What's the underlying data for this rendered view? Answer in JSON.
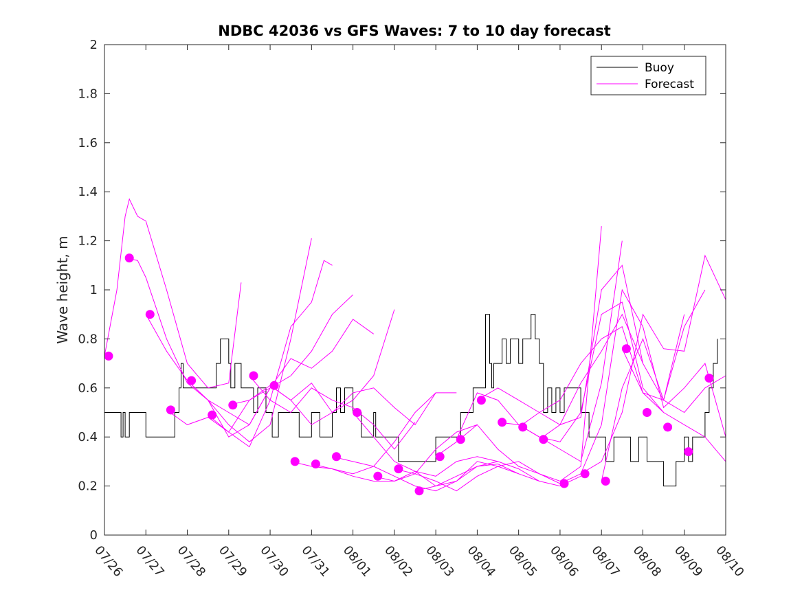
{
  "colors": {
    "buoy": "#000000",
    "forecast": "#ff00ff",
    "axis": "#262626"
  },
  "chart_data": {
    "type": "line",
    "title": "NDBC 42036 vs GFS Waves: 7 to 10 day forecast",
    "xlabel": "",
    "ylabel": "Wave height, m",
    "ylim": [
      0,
      2
    ],
    "yticks": [
      "0",
      "0.2",
      "0.4",
      "0.6",
      "0.8",
      "1",
      "1.2",
      "1.4",
      "1.6",
      "1.8",
      "2"
    ],
    "xlim": [
      0,
      15
    ],
    "x_unit": "days since 07/26",
    "xticks": [
      "07/26",
      "07/27",
      "07/28",
      "07/29",
      "07/30",
      "07/31",
      "08/01",
      "08/02",
      "08/03",
      "08/04",
      "08/05",
      "08/06",
      "08/07",
      "08/08",
      "08/09",
      "08/10"
    ],
    "legend": {
      "placement": "top-right",
      "entries": [
        "Buoy",
        "Forecast"
      ]
    },
    "buoy": {
      "name": "Buoy",
      "x": [
        0,
        0.1,
        0.4,
        0.45,
        0.5,
        0.6,
        0.7,
        0.8,
        1.0,
        1.6,
        1.7,
        1.8,
        1.85,
        1.9,
        2.0,
        2.7,
        2.8,
        3.0,
        3.05,
        3.15,
        3.3,
        3.5,
        3.6,
        3.7,
        3.8,
        3.9,
        4.0,
        4.05,
        4.2,
        4.4,
        4.7,
        4.9,
        5.0,
        5.2,
        5.5,
        5.6,
        5.7,
        5.8,
        6.0,
        6.2,
        6.5,
        6.55,
        6.7,
        6.9,
        7.1,
        7.4,
        7.5,
        7.6,
        7.8,
        8.0,
        8.2,
        8.5,
        8.6,
        8.9,
        9.2,
        9.3,
        9.35,
        9.4,
        9.5,
        9.6,
        9.7,
        9.8,
        10.0,
        10.1,
        10.3,
        10.4,
        10.5,
        10.6,
        10.7,
        10.8,
        10.9,
        11.0,
        11.1,
        11.3,
        11.5,
        11.7,
        11.8,
        12.0,
        12.1,
        12.3,
        12.5,
        12.7,
        12.9,
        13.1,
        13.3,
        13.5,
        13.6,
        13.8,
        14.0,
        14.1,
        14.2,
        14.3,
        14.5,
        14.6,
        14.7,
        14.8
      ],
      "y": [
        0.5,
        0.5,
        0.4,
        0.5,
        0.4,
        0.5,
        0.5,
        0.5,
        0.4,
        0.4,
        0.5,
        0.6,
        0.7,
        0.6,
        0.6,
        0.7,
        0.8,
        0.7,
        0.6,
        0.7,
        0.6,
        0.6,
        0.5,
        0.6,
        0.6,
        0.5,
        0.5,
        0.4,
        0.5,
        0.5,
        0.4,
        0.4,
        0.5,
        0.4,
        0.5,
        0.6,
        0.5,
        0.6,
        0.5,
        0.4,
        0.5,
        0.4,
        0.4,
        0.4,
        0.3,
        0.3,
        0.3,
        0.3,
        0.3,
        0.4,
        0.4,
        0.4,
        0.5,
        0.6,
        0.9,
        0.7,
        0.6,
        0.7,
        0.7,
        0.8,
        0.7,
        0.8,
        0.7,
        0.8,
        0.9,
        0.8,
        0.7,
        0.5,
        0.6,
        0.5,
        0.6,
        0.5,
        0.6,
        0.6,
        0.5,
        0.4,
        0.4,
        0.4,
        0.3,
        0.4,
        0.4,
        0.3,
        0.4,
        0.3,
        0.3,
        0.2,
        0.2,
        0.3,
        0.4,
        0.3,
        0.4,
        0.4,
        0.5,
        0.6,
        0.7,
        0.8
      ]
    },
    "forecast_lines": [
      {
        "x": [
          0.0,
          0.3,
          0.5,
          0.6,
          0.8,
          1.0,
          1.5,
          2.0,
          2.5,
          3.0,
          3.3
        ],
        "y": [
          0.73,
          1.0,
          1.3,
          1.37,
          1.3,
          1.28,
          1.0,
          0.7,
          0.6,
          0.62,
          1.03
        ]
      },
      {
        "x": [
          0.5,
          0.8,
          1.0,
          1.5,
          2.0,
          2.5,
          3.0,
          3.5,
          4.0
        ],
        "y": [
          1.13,
          1.12,
          1.05,
          0.8,
          0.62,
          0.55,
          0.5,
          0.45,
          0.6
        ]
      },
      {
        "x": [
          1.0,
          1.5,
          2.0,
          2.5,
          3.0,
          3.5,
          4.0,
          4.5,
          5.0
        ],
        "y": [
          0.9,
          0.75,
          0.63,
          0.55,
          0.45,
          0.38,
          0.45,
          0.8,
          1.21
        ]
      },
      {
        "x": [
          1.5,
          2.0,
          2.5,
          3.0,
          3.5,
          4.0,
          4.5,
          5.0,
          5.3,
          5.5
        ],
        "y": [
          0.51,
          0.45,
          0.48,
          0.42,
          0.36,
          0.55,
          0.85,
          0.95,
          1.12,
          1.1
        ]
      },
      {
        "x": [
          2.0,
          2.5,
          3.0,
          3.5,
          4.0,
          4.5,
          5.0,
          5.5,
          6.0
        ],
        "y": [
          0.63,
          0.55,
          0.4,
          0.45,
          0.6,
          0.65,
          0.75,
          0.9,
          0.98
        ]
      },
      {
        "x": [
          2.5,
          3.0,
          3.5,
          4.0,
          4.5,
          5.0,
          5.5,
          6.0,
          6.5
        ],
        "y": [
          0.49,
          0.42,
          0.55,
          0.6,
          0.72,
          0.68,
          0.75,
          0.88,
          0.82
        ]
      },
      {
        "x": [
          3.0,
          3.5,
          4.0,
          4.5,
          5.0,
          5.5,
          6.0,
          6.5,
          7.0
        ],
        "y": [
          0.53,
          0.55,
          0.61,
          0.55,
          0.62,
          0.5,
          0.55,
          0.65,
          0.92
        ]
      },
      {
        "x": [
          3.5,
          4.0,
          4.5,
          5.0,
          5.5,
          6.0,
          6.5,
          7.0,
          7.5
        ],
        "y": [
          0.65,
          0.55,
          0.5,
          0.6,
          0.55,
          0.52,
          0.45,
          0.35,
          0.46
        ]
      },
      {
        "x": [
          4.0,
          4.5,
          5.0,
          5.5,
          6.0,
          6.5,
          7.0,
          7.5,
          8.0
        ],
        "y": [
          0.61,
          0.55,
          0.45,
          0.5,
          0.58,
          0.6,
          0.52,
          0.45,
          0.58
        ]
      },
      {
        "x": [
          4.5,
          5.0,
          5.5,
          6.0,
          6.5,
          7.0,
          7.5,
          8.0,
          8.5
        ],
        "y": [
          0.3,
          0.28,
          0.27,
          0.25,
          0.28,
          0.38,
          0.5,
          0.58,
          0.58
        ]
      },
      {
        "x": [
          5.0,
          5.5,
          6.0,
          6.5,
          7.0,
          7.5,
          8.0,
          8.5,
          9.0
        ],
        "y": [
          0.29,
          0.27,
          0.24,
          0.22,
          0.22,
          0.25,
          0.35,
          0.42,
          0.45
        ]
      },
      {
        "x": [
          5.5,
          6.0,
          6.5,
          7.0,
          7.5,
          8.0,
          8.5,
          9.0,
          9.5
        ],
        "y": [
          0.32,
          0.3,
          0.28,
          0.24,
          0.2,
          0.18,
          0.22,
          0.28,
          0.3
        ]
      },
      {
        "x": [
          6.0,
          6.5,
          7.0,
          7.5,
          8.0,
          8.5,
          9.0,
          9.5,
          10.0
        ],
        "y": [
          0.5,
          0.4,
          0.3,
          0.26,
          0.2,
          0.24,
          0.28,
          0.29,
          0.25
        ]
      },
      {
        "x": [
          6.5,
          7.0,
          7.5,
          8.0,
          8.5,
          9.0,
          9.5,
          10.0,
          10.5
        ],
        "y": [
          0.24,
          0.22,
          0.26,
          0.24,
          0.3,
          0.32,
          0.3,
          0.27,
          0.22
        ]
      },
      {
        "x": [
          7.0,
          7.5,
          8.0,
          8.5,
          9.0,
          9.5,
          10.0,
          10.5,
          11.0
        ],
        "y": [
          0.27,
          0.25,
          0.22,
          0.18,
          0.24,
          0.28,
          0.3,
          0.25,
          0.21
        ]
      },
      {
        "x": [
          7.5,
          8.0,
          8.5,
          9.0,
          9.5,
          10.0,
          10.5,
          11.0,
          11.5
        ],
        "y": [
          0.18,
          0.2,
          0.22,
          0.3,
          0.28,
          0.25,
          0.22,
          0.2,
          0.24
        ]
      },
      {
        "x": [
          8.0,
          8.5,
          9.0,
          9.5,
          10.0,
          10.5,
          11.0,
          11.5,
          12.0
        ],
        "y": [
          0.32,
          0.38,
          0.45,
          0.35,
          0.28,
          0.25,
          0.22,
          0.28,
          1.26
        ]
      },
      {
        "x": [
          8.5,
          9.0,
          9.5,
          10.0,
          10.5,
          11.0,
          11.5,
          12.0,
          12.5
        ],
        "y": [
          0.39,
          0.58,
          0.55,
          0.45,
          0.4,
          0.35,
          0.3,
          0.62,
          1.2
        ]
      },
      {
        "x": [
          9.0,
          9.5,
          10.0,
          10.5,
          11.0,
          11.5,
          12.0,
          12.5,
          13.0
        ],
        "y": [
          0.55,
          0.6,
          0.55,
          0.5,
          0.45,
          0.48,
          1.0,
          1.1,
          0.7
        ]
      },
      {
        "x": [
          9.5,
          10.0,
          10.5,
          11.0,
          11.5,
          12.0,
          12.5,
          13.0,
          13.5
        ],
        "y": [
          0.46,
          0.45,
          0.4,
          0.38,
          0.5,
          0.9,
          0.95,
          0.6,
          0.5
        ]
      },
      {
        "x": [
          10.0,
          10.5,
          11.0,
          11.5,
          12.0,
          12.5,
          13.0,
          13.5,
          14.0
        ],
        "y": [
          0.44,
          0.5,
          0.55,
          0.7,
          0.8,
          0.85,
          0.58,
          0.55,
          0.9
        ]
      },
      {
        "x": [
          10.5,
          11.0,
          11.5,
          12.0,
          12.5,
          13.0,
          13.5,
          14.0,
          14.5
        ],
        "y": [
          0.39,
          0.45,
          0.62,
          0.75,
          0.9,
          0.7,
          0.55,
          0.85,
          1.0
        ]
      },
      {
        "x": [
          11.0,
          11.5,
          12.0,
          12.5,
          13.0,
          13.5,
          14.0,
          14.5,
          15.0
        ],
        "y": [
          0.21,
          0.25,
          0.45,
          1.0,
          0.85,
          0.52,
          0.6,
          0.7,
          0.4
        ]
      },
      {
        "x": [
          11.5,
          12.0,
          12.5,
          13.0,
          13.5,
          14.0,
          14.5,
          15.0
        ],
        "y": [
          0.25,
          0.3,
          0.5,
          0.9,
          0.76,
          0.75,
          1.14,
          0.96
        ]
      },
      {
        "x": [
          12.0,
          12.5,
          13.0,
          13.5,
          14.0,
          14.5,
          15.0
        ],
        "y": [
          0.22,
          0.6,
          0.8,
          0.55,
          0.5,
          0.6,
          0.65
        ]
      },
      {
        "x": [
          12.5,
          13.0,
          13.5,
          14.0,
          14.5,
          15.0
        ],
        "y": [
          0.76,
          0.58,
          0.5,
          0.45,
          0.4,
          0.3
        ]
      }
    ],
    "forecast_markers": {
      "x": [
        0.1,
        0.6,
        1.1,
        1.6,
        2.1,
        2.6,
        3.1,
        3.6,
        4.1,
        4.6,
        5.1,
        5.6,
        6.1,
        6.6,
        7.1,
        7.6,
        8.1,
        8.6,
        9.1,
        9.6,
        10.1,
        10.6,
        11.1,
        11.6,
        12.1,
        12.6,
        13.1,
        13.6,
        14.1,
        14.6
      ],
      "y": [
        0.73,
        1.13,
        0.9,
        0.51,
        0.63,
        0.49,
        0.53,
        0.65,
        0.61,
        0.3,
        0.29,
        0.32,
        0.5,
        0.24,
        0.27,
        0.18,
        0.32,
        0.39,
        0.55,
        0.46,
        0.44,
        0.39,
        0.21,
        0.25,
        0.22,
        0.76,
        0.5,
        0.44,
        0.34,
        0.64
      ]
    }
  }
}
